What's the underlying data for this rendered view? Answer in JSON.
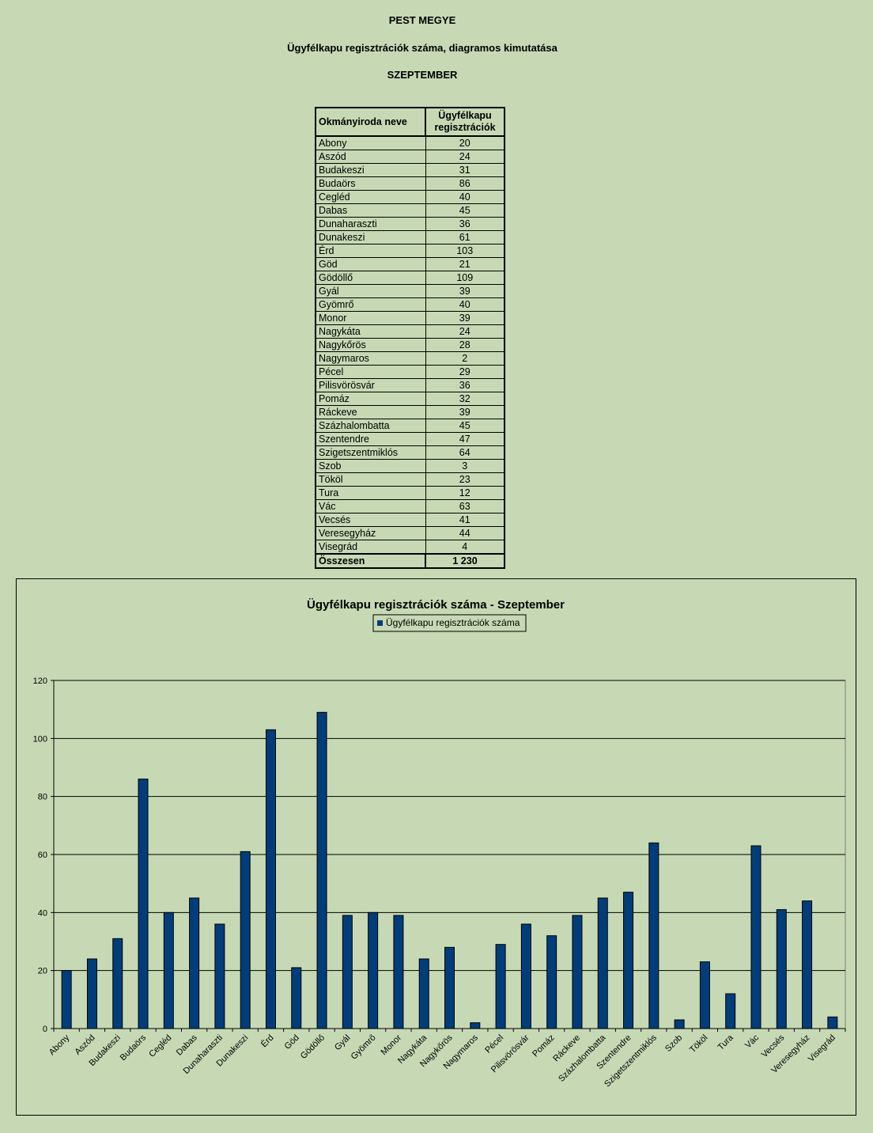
{
  "header": {
    "line1": "PEST MEGYE",
    "line2": "Ügyfélkapu regisztrációk száma, diagramos kimutatása",
    "line3": "SZEPTEMBER"
  },
  "table": {
    "col1": "Okmányiroda neve",
    "col2": "Ügyfélkapu regisztrációk",
    "total_label": "Összesen",
    "total_value": "1 230"
  },
  "chart_data": {
    "type": "bar",
    "title": "Ügyfélkapu regisztrációk száma - Szeptember",
    "legend": "top",
    "grid": true,
    "ylim": [
      0,
      120
    ],
    "yticks": [
      0,
      20,
      40,
      60,
      80,
      100,
      120
    ],
    "bar_color": "#003d7a",
    "categories": [
      "Abony",
      "Aszód",
      "Budakeszi",
      "Budaörs",
      "Cegléd",
      "Dabas",
      "Dunaharaszti",
      "Dunakeszi",
      "Érd",
      "Göd",
      "Gödöllő",
      "Gyál",
      "Gyömrő",
      "Monor",
      "Nagykáta",
      "Nagykőrös",
      "Nagymaros",
      "Pécel",
      "Pilisvörösvár",
      "Pomáz",
      "Ráckeve",
      "Százhalombatta",
      "Szentendre",
      "Szigetszentmiklós",
      "Szob",
      "Tököl",
      "Tura",
      "Vác",
      "Vecsés",
      "Veresegyház",
      "Visegrád"
    ],
    "series": [
      {
        "name": "Ügyfélkapu regisztrációk száma",
        "values": [
          20,
          24,
          31,
          86,
          40,
          45,
          36,
          61,
          103,
          21,
          109,
          39,
          40,
          39,
          24,
          28,
          2,
          29,
          36,
          32,
          39,
          45,
          47,
          64,
          3,
          23,
          12,
          63,
          41,
          44,
          4
        ]
      }
    ]
  }
}
